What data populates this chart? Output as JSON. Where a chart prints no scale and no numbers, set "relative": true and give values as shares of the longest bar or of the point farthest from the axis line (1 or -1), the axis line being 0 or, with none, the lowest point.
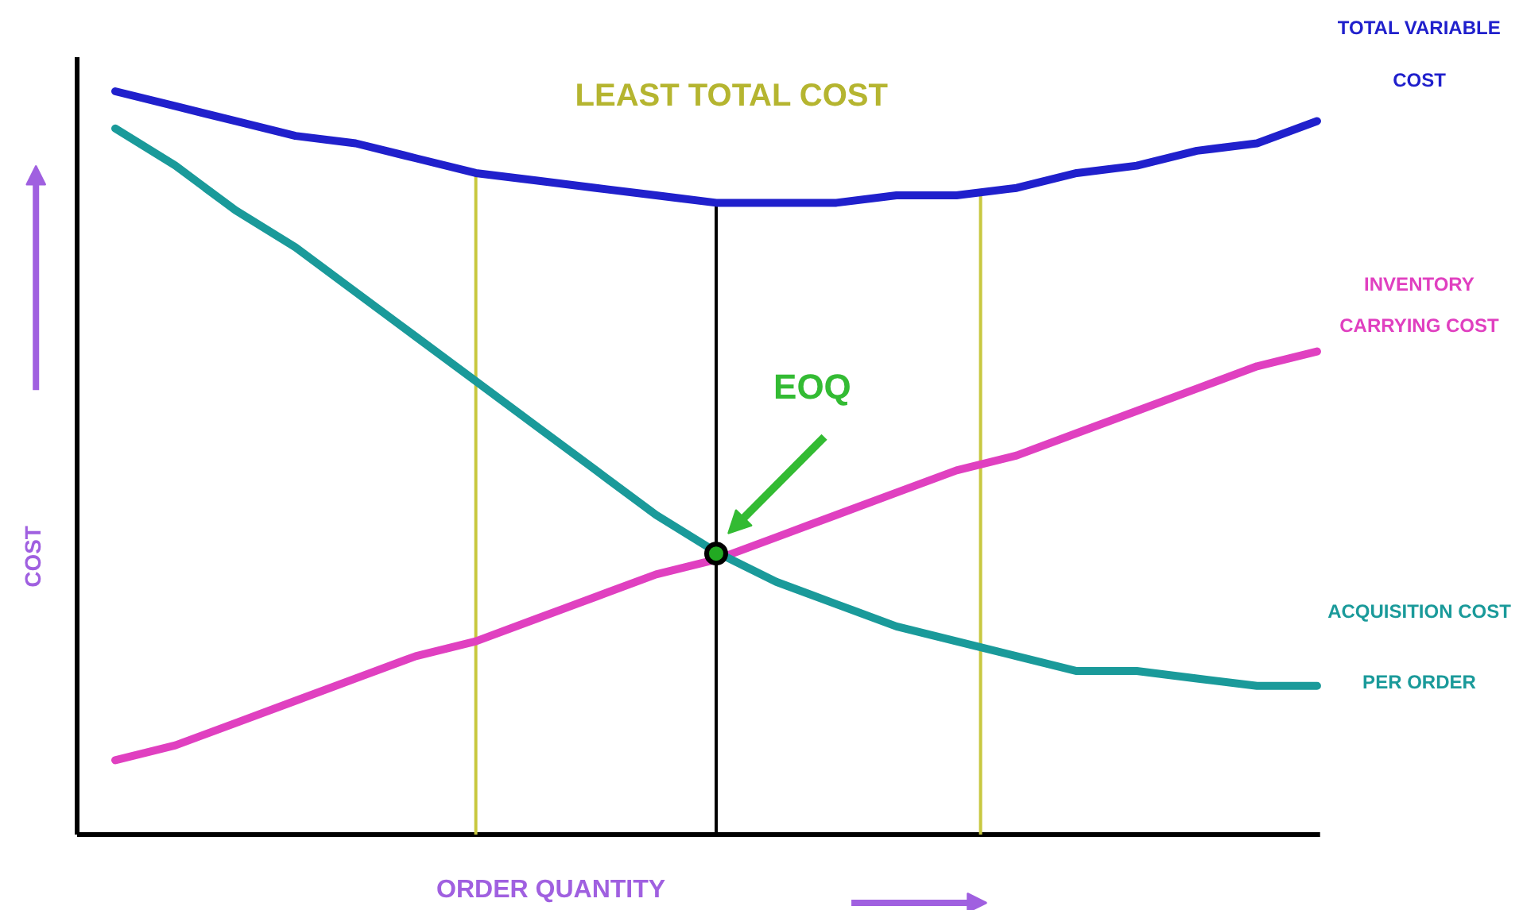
{
  "chart_data": {
    "type": "line",
    "relative": true,
    "xlabel": "ORDER QUANTITY",
    "ylabel": "COST",
    "categories": [
      null,
      null,
      null,
      null,
      null,
      null,
      null,
      null,
      null,
      null,
      null,
      null,
      null,
      null,
      null,
      null,
      null,
      null,
      null,
      null,
      null
    ],
    "series": [
      {
        "name": "TOTAL VARIABLE COST",
        "color": "#2020cc",
        "values": [
          1.0,
          0.98,
          0.96,
          0.94,
          0.93,
          0.91,
          0.89,
          0.88,
          0.87,
          0.86,
          0.85,
          0.85,
          0.85,
          0.86,
          0.86,
          0.87,
          0.89,
          0.9,
          0.92,
          0.93,
          0.96
        ]
      },
      {
        "name": "INVENTORY CARRYING COST",
        "color": "#e040c0",
        "values": [
          0.1,
          0.12,
          0.15,
          0.18,
          0.21,
          0.24,
          0.26,
          0.29,
          0.32,
          0.35,
          0.37,
          0.4,
          0.43,
          0.46,
          0.49,
          0.51,
          0.54,
          0.57,
          0.6,
          0.63,
          0.65
        ]
      },
      {
        "name": "ACQUISITION COST PER ORDER",
        "color": "#1a9a9a",
        "values": [
          0.95,
          0.9,
          0.84,
          0.79,
          0.73,
          0.67,
          0.61,
          0.55,
          0.49,
          0.43,
          0.38,
          0.34,
          0.31,
          0.28,
          0.26,
          0.24,
          0.22,
          0.22,
          0.21,
          0.2,
          0.2
        ]
      }
    ],
    "annotations": [
      "LEAST TOTAL COST",
      "EOQ"
    ]
  }
}
